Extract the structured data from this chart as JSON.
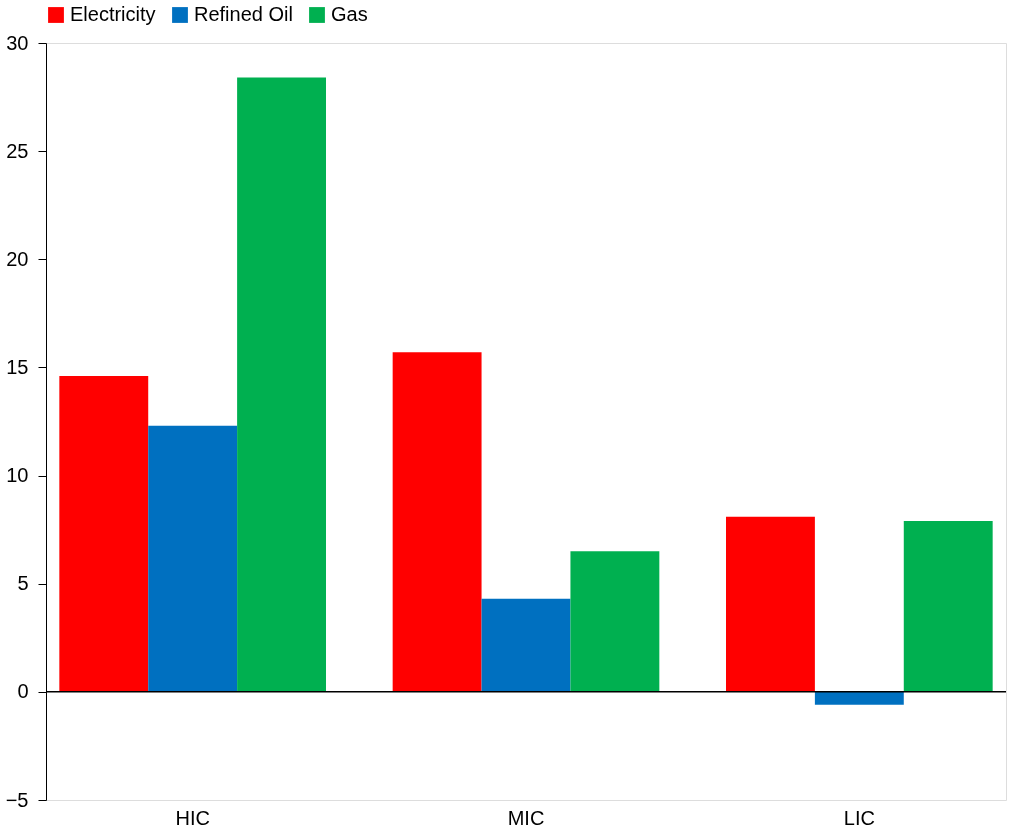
{
  "chart_data": {
    "type": "bar",
    "categories": [
      "HIC",
      "MIC",
      "LIC"
    ],
    "series": [
      {
        "name": "Electricity",
        "color": "#ff0000",
        "values": [
          14.6,
          15.7,
          8.1
        ]
      },
      {
        "name": "Refined Oil",
        "color": "#0070c0",
        "values": [
          12.3,
          4.3,
          -0.6
        ]
      },
      {
        "name": "Gas",
        "color": "#00b050",
        "values": [
          28.4,
          6.5,
          7.9
        ]
      }
    ],
    "ylim": [
      -5,
      30
    ],
    "yticks": [
      -5,
      0,
      5,
      10,
      15,
      20,
      25,
      30
    ],
    "ref_lines": [
      {
        "axis": "y",
        "value": 0
      }
    ],
    "grid": false,
    "legend": "top"
  }
}
